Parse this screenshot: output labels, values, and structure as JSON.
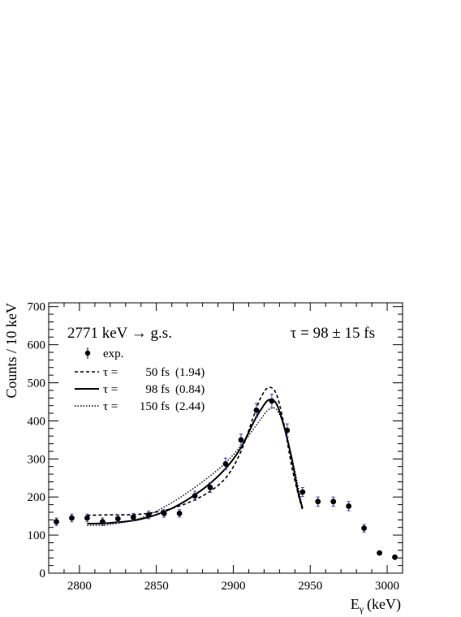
{
  "chart_data": {
    "type": "scatter",
    "xlabel_main": "E",
    "xlabel_sub": "γ",
    "xlabel_unit": "(keV)",
    "ylabel": "Counts / 10 keV",
    "xlim": [
      2780,
      3010
    ],
    "ylim": [
      0,
      710
    ],
    "x_ticks": [
      2800,
      2850,
      2900,
      2950,
      3000
    ],
    "y_ticks": [
      0,
      100,
      200,
      300,
      400,
      500,
      600,
      700
    ],
    "annotation_transition": "2771 keV → g.s.",
    "annotation_lifetime": "τ = 98 ± 15 fs",
    "legend": [
      {
        "symbol": "marker",
        "label": "exp."
      },
      {
        "symbol": "dashed",
        "tau": "τ =",
        "value": "50 fs",
        "chi2": "(1.94)"
      },
      {
        "symbol": "solid",
        "tau": "τ =",
        "value": "98 fs",
        "chi2": "(0.84)"
      },
      {
        "symbol": "dotted",
        "tau": "τ =",
        "value": "150 fs",
        "chi2": "(2.44)"
      }
    ],
    "experimental": {
      "x": [
        2785,
        2795,
        2805,
        2815,
        2825,
        2835,
        2845,
        2855,
        2865,
        2875,
        2885,
        2895,
        2905,
        2915,
        2925,
        2935,
        2945,
        2955,
        2965,
        2975,
        2985,
        2995,
        3005
      ],
      "y": [
        135,
        145,
        145,
        135,
        143,
        147,
        153,
        157,
        157,
        203,
        225,
        287,
        350,
        428,
        452,
        375,
        213,
        188,
        188,
        176,
        118,
        53,
        42
      ],
      "err": [
        10,
        10,
        10,
        10,
        10,
        10,
        10,
        10,
        10,
        12,
        13,
        15,
        15,
        18,
        18,
        17,
        12,
        12,
        12,
        12,
        10,
        5,
        4
      ],
      "color": "#000000",
      "error_color": "#3a3ab0"
    },
    "simulations": [
      {
        "style": "dashed",
        "x": [
          2805,
          2820,
          2840,
          2860,
          2880,
          2895,
          2905,
          2913,
          2918,
          2923,
          2928,
          2933,
          2938,
          2942,
          2945
        ],
        "y": [
          152,
          153,
          155,
          170,
          203,
          250,
          320,
          410,
          462,
          488,
          470,
          390,
          280,
          210,
          165
        ]
      },
      {
        "style": "solid",
        "x": [
          2805,
          2820,
          2840,
          2860,
          2880,
          2895,
          2905,
          2913,
          2918,
          2923,
          2928,
          2933,
          2938,
          2942,
          2945
        ],
        "y": [
          130,
          132,
          142,
          170,
          220,
          275,
          330,
          395,
          430,
          455,
          445,
          385,
          300,
          215,
          170
        ]
      },
      {
        "style": "dotted",
        "x": [
          2805,
          2820,
          2840,
          2860,
          2880,
          2895,
          2905,
          2913,
          2918,
          2923,
          2928,
          2933,
          2938,
          2942,
          2945
        ],
        "y": [
          125,
          128,
          145,
          185,
          240,
          290,
          335,
          378,
          405,
          430,
          430,
          385,
          305,
          230,
          170
        ]
      }
    ]
  }
}
